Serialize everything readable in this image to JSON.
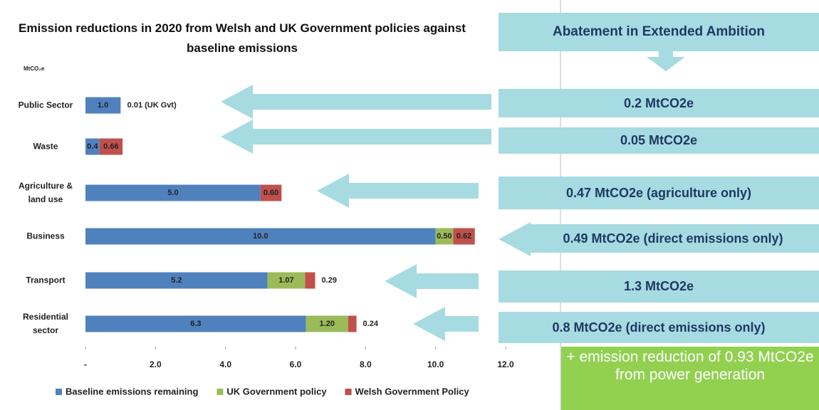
{
  "chart_data": {
    "type": "stacked-bar-horizontal",
    "title": "Emission reductions in 2020 from Welsh and UK Government policies against baseline emissions",
    "unit_label": "MtCO₂e",
    "categories": [
      "Public Sector",
      "Waste",
      "Agriculture & land use",
      "Business",
      "Transport",
      "Residential sector"
    ],
    "series": [
      {
        "name": "Baseline emissions remaining",
        "color": "#4f81bd",
        "values": [
          1.0,
          0.4,
          5.0,
          10.0,
          5.2,
          6.3
        ],
        "value_labels": [
          "1.0",
          "0.4",
          "5.0",
          "10.0",
          "5.2",
          "6.3"
        ]
      },
      {
        "name": "UK Government policy",
        "color": "#9bbb59",
        "values": [
          0.01,
          null,
          null,
          0.5,
          1.07,
          1.2
        ],
        "value_labels": [
          "0.01 (UK Gvt)",
          null,
          null,
          "0.50",
          "1.07",
          "1.20"
        ]
      },
      {
        "name": "Welsh Government Policy",
        "color": "#c0504d",
        "values": [
          null,
          0.66,
          0.6,
          0.62,
          0.29,
          0.24
        ],
        "value_labels": [
          null,
          "0.66",
          "0.60",
          "0.62",
          "0.29",
          "0.24"
        ]
      }
    ],
    "xlim": [
      0,
      12
    ],
    "xticks": [
      {
        "value": 0,
        "label": "-"
      },
      {
        "value": 2,
        "label": "2.0"
      },
      {
        "value": 4,
        "label": "4.0"
      },
      {
        "value": 6,
        "label": "6.0"
      },
      {
        "value": 8,
        "label": "8.0"
      },
      {
        "value": 10,
        "label": "10.0"
      },
      {
        "value": 12,
        "label": "12.0"
      }
    ],
    "legend": "bottom"
  },
  "panel": {
    "header": "Abatement in Extended Ambition",
    "boxes": [
      "0.2 MtCO2e",
      "0.05 MtCO2e",
      "0.47 MtCO2e (agriculture only)",
      "0.49 MtCO2e (direct emissions only)",
      "1.3 MtCO2e",
      "0.8 MtCO2e (direct emissions only)"
    ],
    "note": "+ emission reduction of 0.93 MtCO2e from power generation"
  }
}
